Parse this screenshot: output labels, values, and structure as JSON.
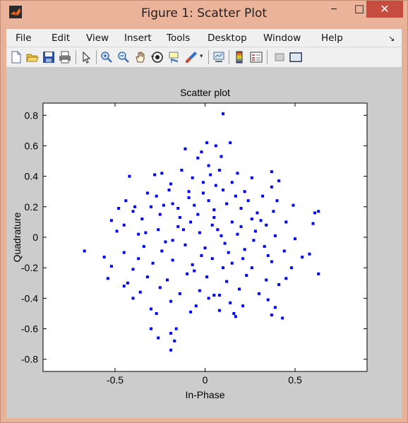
{
  "window": {
    "title": "Figure 1: Scatter Plot",
    "min_glyph": "−",
    "max_glyph": "☐",
    "close_glyph": "✕"
  },
  "menu": {
    "items": [
      "File",
      "Edit",
      "View",
      "Insert",
      "Tools",
      "Desktop",
      "Window",
      "Help"
    ],
    "arrow": "↘"
  },
  "toolbar": {
    "icons": [
      "new-figure-icon",
      "open-file-icon",
      "save-icon",
      "print-icon",
      "pointer-icon",
      "zoom-in-icon",
      "zoom-out-icon",
      "pan-hand-icon",
      "rotate-3d-icon",
      "data-cursor-icon",
      "brush-icon",
      "link-plot-icon",
      "colorbar-icon",
      "legend-icon",
      "hide-plot-tools-icon",
      "show-plot-tools-icon"
    ]
  },
  "colors": {
    "marker": "#0000ff",
    "figure_bg": "#cccccc",
    "axes_bg": "#ffffff",
    "title_bar": "#ecb39b",
    "close_button": "#c64c3f"
  },
  "chart_data": {
    "type": "scatter",
    "title": "Scatter plot",
    "xlabel": "In-Phase",
    "ylabel": "Quadrature",
    "xlim": [
      -0.9,
      0.9
    ],
    "ylim": [
      -0.88,
      0.88
    ],
    "xticks": [
      -0.5,
      0,
      0.5
    ],
    "xtick_labels": [
      "-0.5",
      "0",
      "0.5"
    ],
    "yticks": [
      -0.8,
      -0.6,
      -0.4,
      -0.2,
      0,
      0.2,
      0.4,
      0.6,
      0.8
    ],
    "ytick_labels": [
      "-0.8",
      "-0.6",
      "-0.4",
      "-0.2",
      "0",
      "0.2",
      "0.4",
      "0.6",
      "0.8"
    ],
    "grid": false,
    "series": [
      {
        "marker": "dot",
        "points": [
          [
            0.1,
            0.81
          ],
          [
            0.01,
            0.62
          ],
          [
            -0.11,
            0.58
          ],
          [
            0.06,
            0.6
          ],
          [
            0.14,
            0.62
          ],
          [
            -0.04,
            0.52
          ],
          [
            -0.02,
            0.56
          ],
          [
            0.09,
            0.53
          ],
          [
            -0.42,
            0.4
          ],
          [
            -0.24,
            0.42
          ],
          [
            -0.28,
            0.41
          ],
          [
            0.37,
            0.43
          ],
          [
            0.41,
            0.37
          ],
          [
            0.37,
            0.33
          ],
          [
            0.02,
            0.47
          ],
          [
            0.08,
            0.44
          ],
          [
            -0.13,
            0.44
          ],
          [
            0.03,
            0.41
          ],
          [
            0.18,
            0.42
          ],
          [
            0.26,
            0.39
          ],
          [
            -0.07,
            0.39
          ],
          [
            0.15,
            0.36
          ],
          [
            -0.19,
            0.35
          ],
          [
            0.06,
            0.34
          ],
          [
            -0.44,
            0.24
          ],
          [
            -0.39,
            0.2
          ],
          [
            -0.32,
            0.29
          ],
          [
            -0.27,
            0.27
          ],
          [
            -0.2,
            0.31
          ],
          [
            -0.09,
            0.3
          ],
          [
            -0.01,
            0.29
          ],
          [
            0.1,
            0.31
          ],
          [
            0.22,
            0.3
          ],
          [
            0.32,
            0.27
          ],
          [
            0.4,
            0.24
          ],
          [
            0.49,
            0.21
          ],
          [
            -0.48,
            0.19
          ],
          [
            -0.4,
            0.17
          ],
          [
            -0.3,
            0.2
          ],
          [
            -0.18,
            0.22
          ],
          [
            -0.06,
            0.21
          ],
          [
            0.02,
            0.24
          ],
          [
            0.12,
            0.22
          ],
          [
            0.2,
            0.19
          ],
          [
            0.29,
            0.16
          ],
          [
            0.38,
            0.17
          ],
          [
            0.61,
            0.16
          ],
          [
            0.63,
            0.17
          ],
          [
            -0.52,
            0.11
          ],
          [
            -0.45,
            0.08
          ],
          [
            -0.35,
            0.12
          ],
          [
            -0.25,
            0.15
          ],
          [
            -0.14,
            0.13
          ],
          [
            -0.04,
            0.15
          ],
          [
            0.05,
            0.13
          ],
          [
            0.15,
            0.1
          ],
          [
            0.26,
            0.12
          ],
          [
            0.34,
            0.08
          ],
          [
            0.45,
            0.1
          ],
          [
            0.6,
            0.09
          ],
          [
            -0.49,
            0.04
          ],
          [
            -0.37,
            0.02
          ],
          [
            -0.26,
            0.05
          ],
          [
            -0.15,
            0.07
          ],
          [
            -0.03,
            0.03
          ],
          [
            0.07,
            0.05
          ],
          [
            0.18,
            0.02
          ],
          [
            0.28,
            0.04
          ],
          [
            0.39,
            0.01
          ],
          [
            0.5,
            -0.01
          ],
          [
            -0.67,
            -0.09
          ],
          [
            -0.56,
            -0.13
          ],
          [
            -0.45,
            -0.1
          ],
          [
            -0.34,
            -0.06
          ],
          [
            -0.22,
            -0.03
          ],
          [
            -0.11,
            -0.05
          ],
          [
            0.0,
            -0.07
          ],
          [
            0.11,
            -0.04
          ],
          [
            0.22,
            -0.08
          ],
          [
            0.33,
            -0.06
          ],
          [
            0.44,
            -0.09
          ],
          [
            0.54,
            -0.13
          ],
          [
            0.58,
            -0.11
          ],
          [
            -0.52,
            -0.19
          ],
          [
            -0.4,
            -0.21
          ],
          [
            -0.29,
            -0.17
          ],
          [
            -0.18,
            -0.15
          ],
          [
            -0.07,
            -0.18
          ],
          [
            0.04,
            -0.14
          ],
          [
            0.15,
            -0.17
          ],
          [
            0.26,
            -0.2
          ],
          [
            0.37,
            -0.16
          ],
          [
            0.48,
            -0.2
          ],
          [
            -0.54,
            -0.27
          ],
          [
            -0.43,
            -0.3
          ],
          [
            -0.32,
            -0.26
          ],
          [
            -0.21,
            -0.28
          ],
          [
            -0.1,
            -0.24
          ],
          [
            0.01,
            -0.26
          ],
          [
            0.12,
            -0.29
          ],
          [
            0.23,
            -0.25
          ],
          [
            0.34,
            -0.28
          ],
          [
            0.45,
            -0.27
          ],
          [
            0.63,
            -0.24
          ],
          [
            -0.45,
            -0.32
          ],
          [
            -0.36,
            -0.36
          ],
          [
            -0.25,
            -0.33
          ],
          [
            -0.14,
            -0.37
          ],
          [
            -0.03,
            -0.35
          ],
          [
            0.08,
            -0.38
          ],
          [
            0.19,
            -0.34
          ],
          [
            0.3,
            -0.37
          ],
          [
            0.41,
            -0.31
          ],
          [
            -0.4,
            -0.4
          ],
          [
            -0.19,
            -0.42
          ],
          [
            0.02,
            -0.4
          ],
          [
            0.14,
            -0.43
          ],
          [
            0.35,
            -0.41
          ],
          [
            0.39,
            -0.46
          ],
          [
            -0.3,
            -0.47
          ],
          [
            -0.08,
            -0.49
          ],
          [
            0.08,
            -0.48
          ],
          [
            0.21,
            -0.45
          ],
          [
            -0.27,
            -0.5
          ],
          [
            -0.05,
            -0.45
          ],
          [
            0.17,
            -0.52
          ],
          [
            0.37,
            -0.51
          ],
          [
            0.43,
            -0.53
          ],
          [
            0.16,
            -0.5
          ],
          [
            -0.3,
            -0.6
          ],
          [
            -0.16,
            -0.6
          ],
          [
            -0.19,
            -0.63
          ],
          [
            -0.26,
            -0.66
          ],
          [
            -0.17,
            -0.68
          ],
          [
            -0.19,
            -0.74
          ],
          [
            0.05,
            -0.38
          ],
          [
            -0.12,
            0.05
          ],
          [
            -0.08,
            0.1
          ],
          [
            0.04,
            0.08
          ],
          [
            0.09,
            0.01
          ],
          [
            -0.18,
            -0.02
          ],
          [
            0.13,
            -0.1
          ],
          [
            -0.02,
            -0.12
          ],
          [
            0.2,
            0.07
          ],
          [
            -0.24,
            -0.09
          ],
          [
            0.27,
            -0.02
          ],
          [
            -0.33,
            0.03
          ],
          [
            0.31,
            0.11
          ],
          [
            -0.06,
            -0.22
          ],
          [
            0.1,
            -0.2
          ],
          [
            -0.15,
            0.19
          ],
          [
            0.17,
            0.27
          ],
          [
            -0.01,
            0.36
          ],
          [
            0.24,
            0.24
          ],
          [
            -0.23,
            0.21
          ],
          [
            0.35,
            -0.12
          ],
          [
            -0.37,
            -0.14
          ],
          [
            0.05,
            0.18
          ],
          [
            -0.09,
            0.26
          ],
          [
            0.21,
            -0.14
          ]
        ]
      }
    ]
  }
}
